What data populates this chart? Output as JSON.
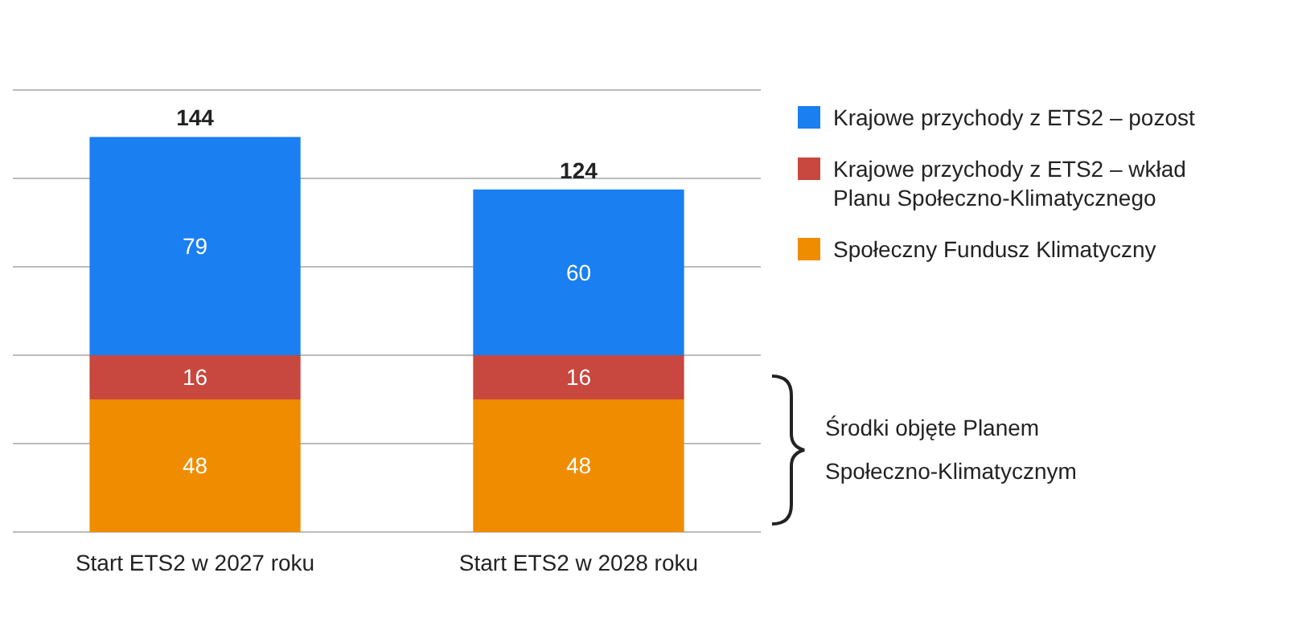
{
  "chart_data": {
    "type": "bar",
    "stacked": true,
    "categories": [
      "Start ETS2 w 2027 roku",
      "Start ETS2 w 2028 roku"
    ],
    "series": [
      {
        "name": "Społeczny Fundusz Klimatyczny",
        "color": "#f08c00",
        "values": [
          48,
          48
        ]
      },
      {
        "name": "Krajowe przychody z ETS2 – wkład Planu Społeczno-Klimatycznego",
        "color": "#c8473e",
        "values": [
          16,
          16
        ]
      },
      {
        "name": "Krajowe przychody z ETS2 – pozost",
        "color": "#1a7ff0",
        "values": [
          79,
          60
        ]
      }
    ],
    "ylim": [
      0,
      160
    ],
    "yticks": [
      {
        "value": 0,
        "label": null
      },
      {
        "value": 32,
        "label": null
      },
      {
        "value": 64,
        "label": null
      },
      {
        "value": 96,
        "label": null
      },
      {
        "value": 128,
        "label": null
      },
      {
        "value": 160,
        "label": null
      }
    ],
    "tick_labels": "x",
    "grid": "y",
    "data_labels": true,
    "totals": [
      "144",
      "124"
    ],
    "legend": "right",
    "annotations": [
      "Środki objęte Planem Społeczno-Klimatycznym"
    ]
  }
}
